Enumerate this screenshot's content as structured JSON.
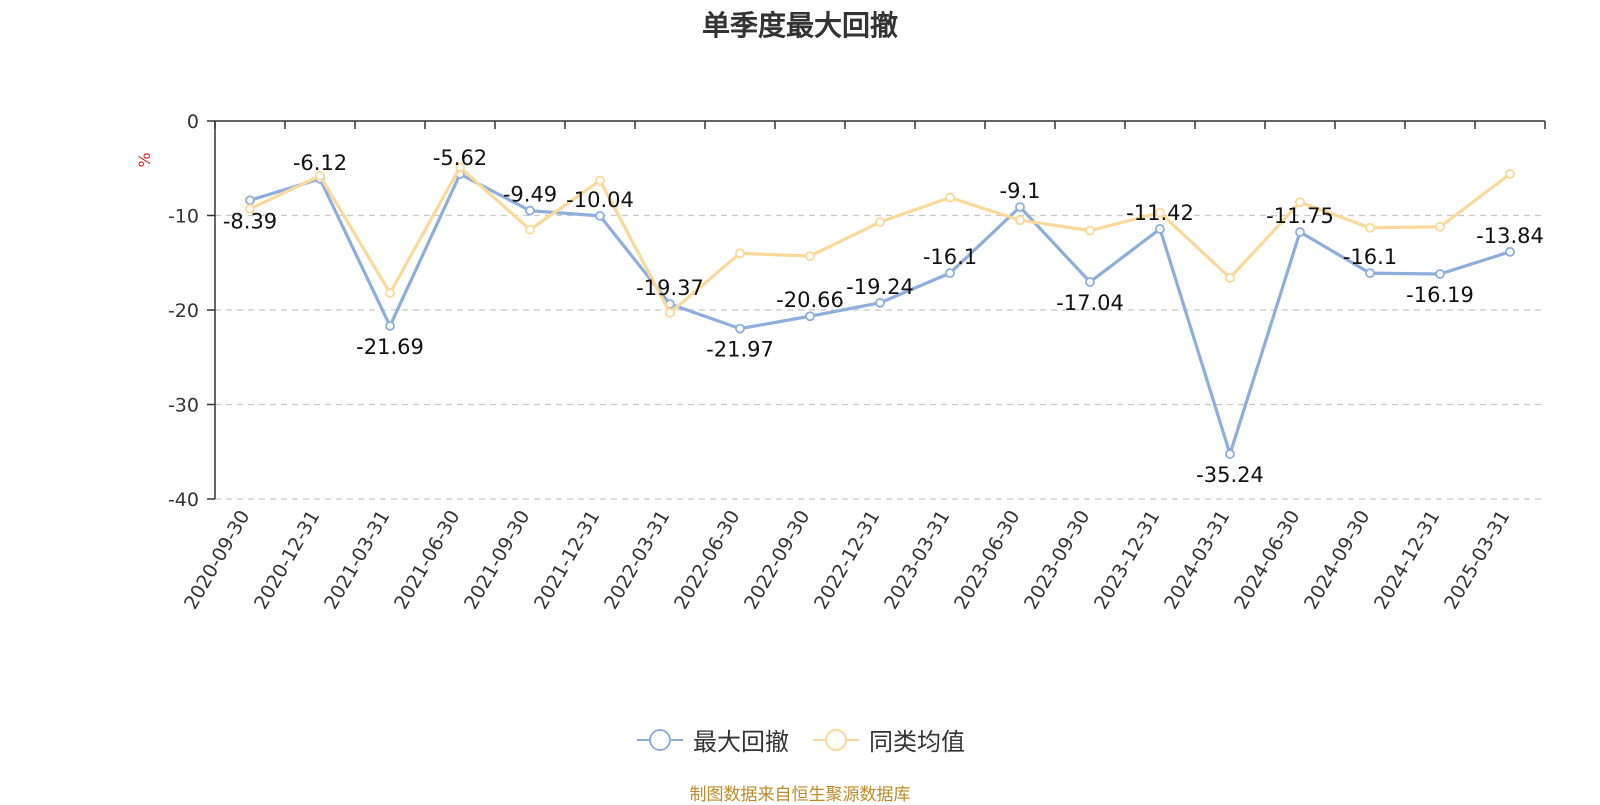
{
  "chart_data": {
    "type": "line",
    "title": "单季度最大回撤",
    "ylabel": "%",
    "ylim": [
      -40,
      0
    ],
    "yticks": [
      0,
      -10,
      -20,
      -30,
      -40
    ],
    "grid": true,
    "legend_position": "bottom-center",
    "categories": [
      "2020-09-30",
      "2020-12-31",
      "2021-03-31",
      "2021-06-30",
      "2021-09-30",
      "2021-12-31",
      "2022-03-31",
      "2022-06-30",
      "2022-09-30",
      "2022-12-31",
      "2023-03-31",
      "2023-06-30",
      "2023-09-30",
      "2023-12-31",
      "2024-03-31",
      "2024-06-30",
      "2024-09-30",
      "2024-12-31",
      "2025-03-31"
    ],
    "series": [
      {
        "name": "最大回撤",
        "color": "#8eaedb",
        "values": [
          -8.39,
          -6.12,
          -21.69,
          -5.62,
          -9.49,
          -10.04,
          -19.37,
          -21.97,
          -20.66,
          -19.24,
          -16.1,
          -9.1,
          -17.04,
          -11.42,
          -35.24,
          -11.75,
          -16.1,
          -16.19,
          -13.84
        ],
        "labels": [
          "-8.39",
          "-6.12",
          "-21.69",
          "-5.62",
          "-9.49",
          "-10.04",
          "-19.37",
          "-21.97",
          "-20.66",
          "-19.24",
          "-16.1",
          "-9.1",
          "-17.04",
          "-11.42",
          "-35.24",
          "-11.75",
          "-16.1",
          "-16.19",
          "-13.84"
        ]
      },
      {
        "name": "同类均值",
        "color": "#fbd99a",
        "values": [
          -9.3,
          -5.8,
          -18.2,
          -4.9,
          -11.5,
          -6.3,
          -20.3,
          -14.0,
          -14.3,
          -10.7,
          -8.1,
          -10.5,
          -11.6,
          -9.7,
          -16.6,
          -8.6,
          -11.3,
          -11.2,
          -5.6
        ]
      }
    ]
  },
  "footer": {
    "source": "制图数据来自恒生聚源数据库"
  }
}
